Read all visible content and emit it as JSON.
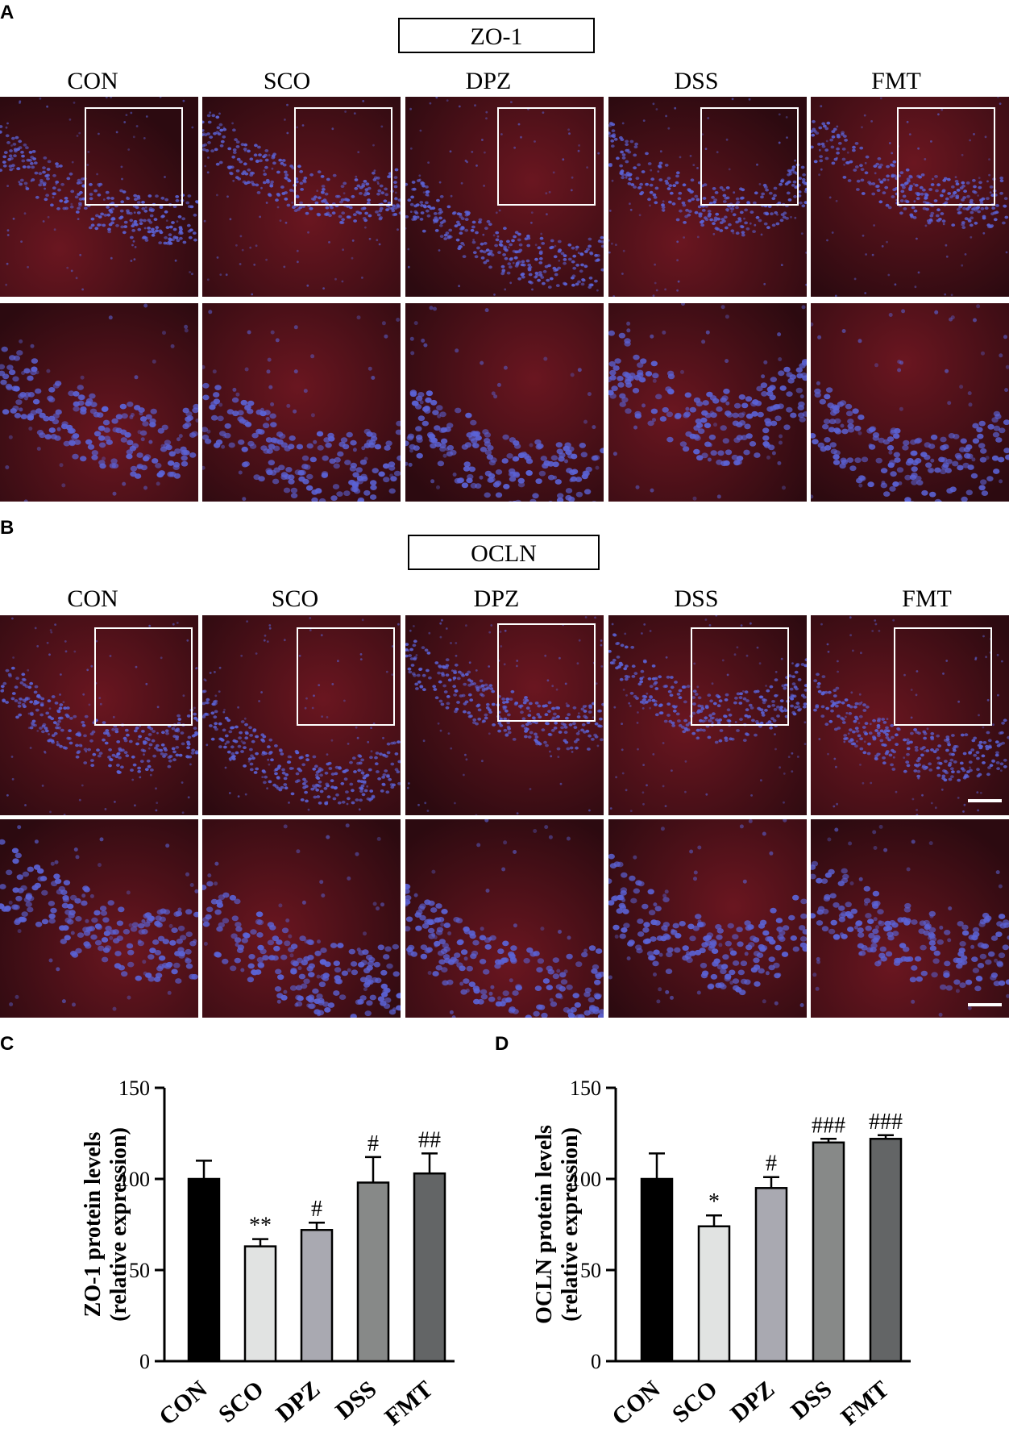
{
  "panels": {
    "A": {
      "letter": "A",
      "title": "ZO-1",
      "groups": [
        "CON",
        "SCO",
        "DPZ",
        "DSS",
        "FMT"
      ]
    },
    "B": {
      "letter": "B",
      "title": "OCLN",
      "groups": [
        "CON",
        "SCO",
        "DPZ",
        "DSS",
        "FMT"
      ]
    },
    "C": {
      "letter": "C"
    },
    "D": {
      "letter": "D"
    }
  },
  "colors": {
    "tissue_red": "#4a0e14",
    "nuclei_blue": "#5b63d6",
    "roi_white": "#ffffff"
  },
  "chart_data": [
    {
      "type": "bar",
      "panel": "C",
      "categories": [
        "CON",
        "SCO",
        "DPZ",
        "DSS",
        "FMT"
      ],
      "values": [
        100,
        63,
        72,
        98,
        103
      ],
      "errors": [
        10,
        4,
        4,
        14,
        11
      ],
      "annotations": [
        "",
        "**",
        "#",
        "#",
        "##"
      ],
      "ylabel_line1": "ZO-1 protein levels",
      "ylabel_line2": "(relative expression)",
      "yticks": [
        0,
        50,
        100,
        150
      ],
      "ylim": [
        0,
        150
      ],
      "bar_colors": [
        "#000000",
        "#e1e3e2",
        "#a9a9b1",
        "#878988",
        "#636566"
      ],
      "grid": false
    },
    {
      "type": "bar",
      "panel": "D",
      "categories": [
        "CON",
        "SCO",
        "DPZ",
        "DSS",
        "FMT"
      ],
      "values": [
        100,
        74,
        95,
        120,
        122
      ],
      "errors": [
        14,
        6,
        6,
        2,
        2
      ],
      "annotations": [
        "",
        "*",
        "#",
        "###",
        "###"
      ],
      "ylabel_line1": "OCLN protein levels",
      "ylabel_line2": "(relative expression)",
      "yticks": [
        0,
        50,
        100,
        150
      ],
      "ylim": [
        0,
        150
      ],
      "bar_colors": [
        "#000000",
        "#e1e3e2",
        "#a9a9b1",
        "#878988",
        "#636566"
      ],
      "grid": false
    }
  ]
}
